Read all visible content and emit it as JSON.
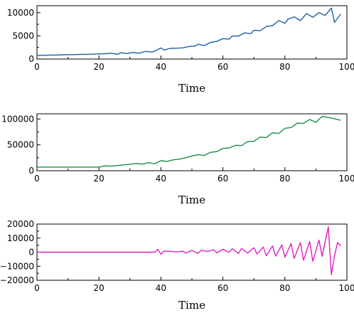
{
  "chart_data": [
    {
      "type": "line",
      "xlabel": "Time",
      "ylabel": "",
      "xlim": [
        0,
        100
      ],
      "ylim": [
        0,
        11500
      ],
      "xticks": [
        0,
        20,
        40,
        60,
        80,
        100
      ],
      "yticks": [
        0,
        5000,
        10000
      ],
      "xtick_labels": [
        "0",
        "20",
        "40",
        "60",
        "80",
        "100"
      ],
      "ytick_labels": [
        "0",
        "5000",
        "10000"
      ],
      "grid": false,
      "colors": {
        "series": "#1f5fa0"
      },
      "series": [
        {
          "x": [
            0,
            2,
            4,
            6,
            8,
            10,
            12,
            14,
            16,
            18,
            20,
            22,
            24,
            26,
            27,
            29,
            31,
            33,
            35,
            37,
            38,
            40,
            41,
            43,
            45,
            47,
            49,
            51,
            52,
            54,
            56,
            58,
            60,
            62,
            63,
            65,
            67,
            69,
            70,
            72,
            74,
            76,
            78,
            80,
            81,
            83,
            85,
            87,
            89,
            91,
            93,
            95,
            96,
            98
          ],
          "y": [
            800,
            800,
            850,
            850,
            900,
            950,
            950,
            1000,
            1000,
            1050,
            1100,
            1150,
            1250,
            1000,
            1350,
            1200,
            1400,
            1250,
            1650,
            1500,
            1700,
            2400,
            1950,
            2300,
            2350,
            2400,
            2700,
            2800,
            3200,
            2900,
            3600,
            3800,
            4400,
            4300,
            4950,
            4950,
            5650,
            5450,
            6200,
            6100,
            7000,
            7200,
            8300,
            7700,
            8600,
            9100,
            8300,
            9800,
            9000,
            10000,
            9400,
            11000,
            7900,
            9700
          ]
        }
      ]
    },
    {
      "type": "line",
      "xlabel": "Time",
      "ylabel": "",
      "xlim": [
        0,
        100
      ],
      "ylim": [
        0,
        110000
      ],
      "xticks": [
        0,
        20,
        40,
        60,
        80,
        100
      ],
      "yticks": [
        0,
        50000,
        100000
      ],
      "xtick_labels": [
        "0",
        "20",
        "40",
        "60",
        "80",
        "100"
      ],
      "ytick_labels": [
        "0",
        "50000",
        "100000"
      ],
      "grid": false,
      "colors": {
        "series": "#1e8a4a"
      },
      "series": [
        {
          "x": [
            0,
            5,
            10,
            15,
            20,
            22,
            24,
            27,
            30,
            32,
            34,
            36,
            38,
            40,
            42,
            44,
            46,
            48,
            50,
            52,
            54,
            56,
            58,
            60,
            62,
            64,
            66,
            68,
            70,
            72,
            74,
            76,
            78,
            80,
            82,
            84,
            86,
            88,
            90,
            92,
            94,
            96,
            98
          ],
          "y": [
            7000,
            7000,
            7000,
            7000,
            7000,
            9500,
            8800,
            10800,
            12500,
            14000,
            12800,
            15500,
            13500,
            19500,
            18000,
            21000,
            22500,
            25000,
            28500,
            31000,
            29500,
            35500,
            37000,
            43000,
            44000,
            49000,
            48500,
            56500,
            57000,
            65000,
            64000,
            73500,
            72000,
            82000,
            83500,
            92000,
            91500,
            99000,
            93500,
            105000,
            103000,
            100500,
            97500
          ]
        }
      ]
    },
    {
      "type": "line",
      "xlabel": "Time",
      "ylabel": "",
      "xlim": [
        0,
        100
      ],
      "ylim": [
        -20000,
        20000
      ],
      "xticks": [
        0,
        20,
        40,
        60,
        80,
        100
      ],
      "yticks": [
        -20000,
        -10000,
        0,
        10000,
        20000
      ],
      "xtick_labels": [
        "0",
        "20",
        "40",
        "60",
        "80",
        "100"
      ],
      "ytick_labels": [
        "−20000",
        "−10000",
        "0",
        "10000",
        "20000"
      ],
      "grid": false,
      "colors": {
        "series": "#e020c0"
      },
      "series": [
        {
          "x": [
            0,
            10,
            20,
            30,
            38,
            39,
            40,
            41,
            43,
            45,
            47,
            48,
            50,
            52,
            53,
            55,
            57,
            58,
            60,
            62,
            63,
            65,
            66,
            68,
            70,
            71,
            73,
            74,
            76,
            77,
            79,
            80,
            82,
            83,
            85,
            86,
            88,
            89,
            91,
            92,
            94,
            95,
            96,
            97,
            98
          ],
          "y": [
            0,
            0,
            0,
            0,
            0,
            2000,
            -1500,
            800,
            600,
            200,
            700,
            -600,
            1200,
            -800,
            1300,
            600,
            1700,
            -500,
            2100,
            -200,
            2500,
            -900,
            2600,
            -600,
            3200,
            -1300,
            3700,
            -2500,
            4400,
            -2800,
            5200,
            -3500,
            6100,
            -4500,
            6900,
            -5800,
            7600,
            -6500,
            8600,
            -3000,
            18000,
            -16000,
            -2500,
            7000,
            4500
          ]
        }
      ]
    }
  ]
}
